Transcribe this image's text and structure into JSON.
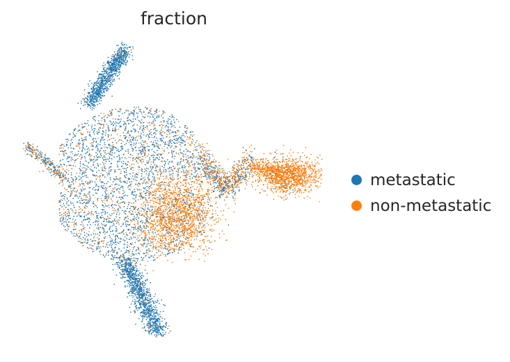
{
  "chart_data": {
    "type": "scatter",
    "title": "fraction",
    "xlabel": "",
    "ylabel": "",
    "grid": false,
    "axes_visible": false,
    "legend_position": "right",
    "series": [
      {
        "name": "metastatic",
        "color": "#1f77b4"
      },
      {
        "name": "non-metastatic",
        "color": "#ff7f0e"
      }
    ]
  }
}
